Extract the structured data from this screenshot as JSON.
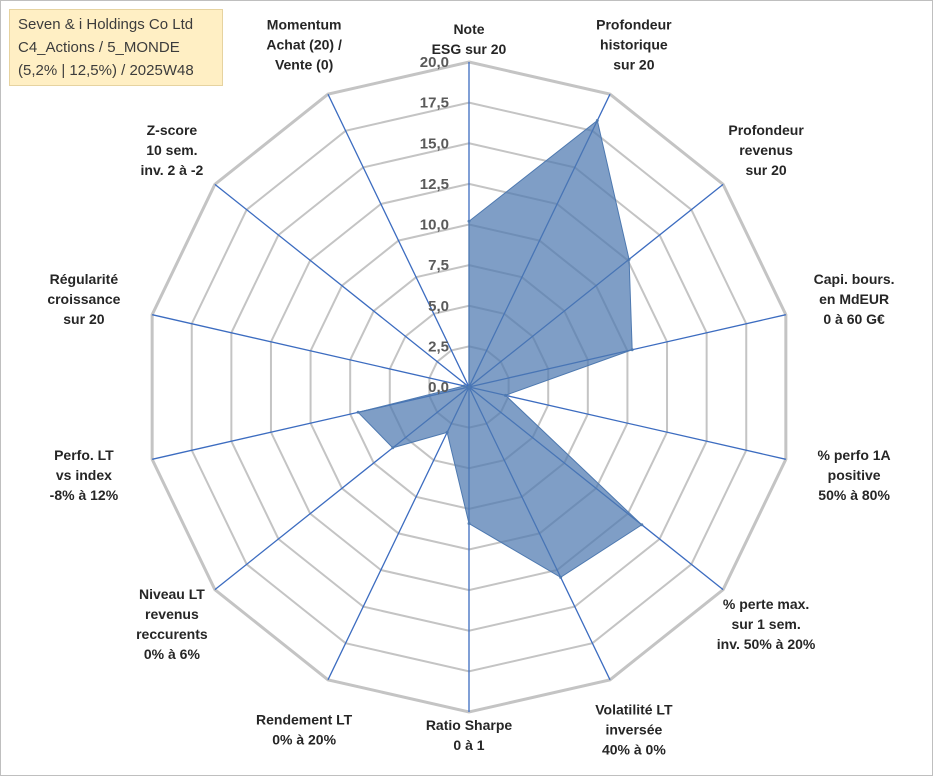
{
  "info_box": {
    "line1": "Seven & i Holdings Co Ltd",
    "line2": "C4_Actions / 5_MONDE",
    "line3": "(5,2% | 12,5%) / 2025W48"
  },
  "colors": {
    "fill": "#4e79b0",
    "grid": "#c4c4c4",
    "spoke": "#3c6cc0",
    "box": "#ffefc4"
  },
  "chart_data": {
    "type": "radar",
    "title": "",
    "range": [
      0,
      20
    ],
    "ticks": [
      "0,0",
      "2,5",
      "5,0",
      "7,5",
      "10,0",
      "12,5",
      "15,0",
      "17,5",
      "20,0"
    ],
    "axes": [
      {
        "lines": [
          "Note",
          "ESG sur 20"
        ],
        "value": 10.2
      },
      {
        "lines": [
          "Profondeur",
          "historique",
          "sur 20"
        ],
        "value": 18.2
      },
      {
        "lines": [
          "Profondeur",
          "revenus",
          "sur 20"
        ],
        "value": 12.6
      },
      {
        "lines": [
          "Capi. bours.",
          "en MdEUR",
          "0 à 60 G€"
        ],
        "value": 10.3
      },
      {
        "lines": [
          "% perfo 1A",
          "positive",
          "50% à 80%"
        ],
        "value": 2.3
      },
      {
        "lines": [
          "% perte max.",
          "sur 1 sem.",
          "inv. 50% à 20%"
        ],
        "value": 13.6
      },
      {
        "lines": [
          "Volatilité LT",
          "inversée",
          "40% à 0%"
        ],
        "value": 13.0
      },
      {
        "lines": [
          "Ratio Sharpe",
          "0 à 1"
        ],
        "value": 8.4
      },
      {
        "lines": [
          "Rendement LT",
          "0% à 20%"
        ],
        "value": 3.1
      },
      {
        "lines": [
          "Niveau LT",
          "revenus",
          "reccurents",
          "0% à 6%"
        ],
        "value": 6.0
      },
      {
        "lines": [
          "Perfo. LT",
          "vs index",
          "-8% à 12%"
        ],
        "value": 7.0
      },
      {
        "lines": [
          "Régularité",
          "croissance",
          "sur 20"
        ],
        "value": 0.3
      },
      {
        "lines": [
          "Z-score",
          "10 sem.",
          "inv. 2 à -2"
        ],
        "value": 0.0
      },
      {
        "lines": [
          "Momentum",
          "Achat (20) /",
          "Vente (0)"
        ],
        "value": 0.0
      }
    ]
  }
}
